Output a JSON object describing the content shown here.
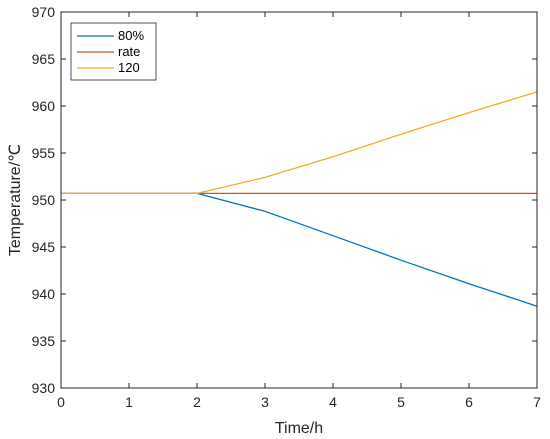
{
  "chart_data": {
    "type": "line",
    "title": "",
    "xlabel": "Time/h",
    "ylabel": "Temperature/℃",
    "xlim": [
      0,
      7
    ],
    "ylim": [
      930,
      970
    ],
    "x_ticks": [
      "0",
      "1",
      "2",
      "3",
      "4",
      "5",
      "6",
      "7"
    ],
    "y_ticks": [
      "930",
      "935",
      "940",
      "945",
      "950",
      "955",
      "960",
      "965",
      "970"
    ],
    "grid": false,
    "legend_position": "top-left",
    "series": [
      {
        "name": "80%",
        "color": "#0072BD",
        "x": [
          0,
          2,
          3,
          4,
          5,
          6,
          7
        ],
        "y": [
          950.7,
          950.7,
          948.8,
          946.2,
          943.6,
          941.1,
          938.7
        ]
      },
      {
        "name": "rate",
        "color": "#D95319",
        "x": [
          0,
          2,
          3,
          4,
          5,
          6,
          7
        ],
        "y": [
          950.7,
          950.7,
          950.7,
          950.7,
          950.7,
          950.7,
          950.7
        ]
      },
      {
        "name": "120",
        "color": "#EDB120",
        "x": [
          0,
          2,
          3,
          4,
          5,
          6,
          7
        ],
        "y": [
          950.7,
          950.7,
          952.4,
          954.6,
          957.0,
          959.3,
          961.5
        ]
      }
    ]
  }
}
